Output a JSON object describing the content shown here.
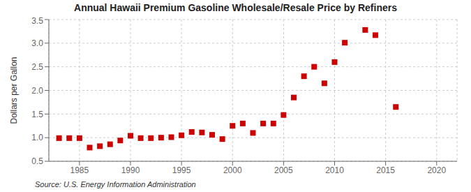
{
  "chart_data": {
    "type": "scatter",
    "title": "Annual Hawaii Premium Gasoline Wholesale/Resale Price by Refiners",
    "ylabel": "Dollars per Gallon",
    "annotation": "Source: U.S. Energy Information Administration",
    "x": [
      1983,
      1984,
      1985,
      1986,
      1987,
      1988,
      1989,
      1990,
      1991,
      1992,
      1993,
      1994,
      1995,
      1996,
      1997,
      1998,
      1999,
      2000,
      2001,
      2002,
      2003,
      2004,
      2005,
      2006,
      2007,
      2008,
      2009,
      2010,
      2011,
      2013,
      2014,
      2016
    ],
    "values": [
      0.99,
      0.99,
      0.99,
      0.79,
      0.82,
      0.86,
      0.94,
      1.04,
      0.99,
      0.99,
      1.0,
      1.01,
      1.05,
      1.12,
      1.11,
      1.06,
      0.97,
      1.25,
      1.3,
      1.1,
      1.3,
      1.3,
      1.48,
      1.85,
      2.3,
      2.5,
      2.15,
      2.6,
      3.01,
      3.28,
      3.17,
      1.65
    ],
    "color": "#cc0000",
    "marker": "square",
    "xlim": [
      1982,
      2022
    ],
    "ylim": [
      0.5,
      3.5
    ],
    "xticks": [
      1985,
      1990,
      1995,
      2000,
      2005,
      2010,
      2015,
      2020
    ],
    "yticks": [
      0.5,
      {
        "value": 1.0,
        "label": "1.0"
      },
      1.5,
      {
        "value": 2.0,
        "label": "2.0"
      },
      2.5,
      {
        "value": 3.0,
        "label": "3.0"
      },
      3.5
    ],
    "grid": true
  }
}
